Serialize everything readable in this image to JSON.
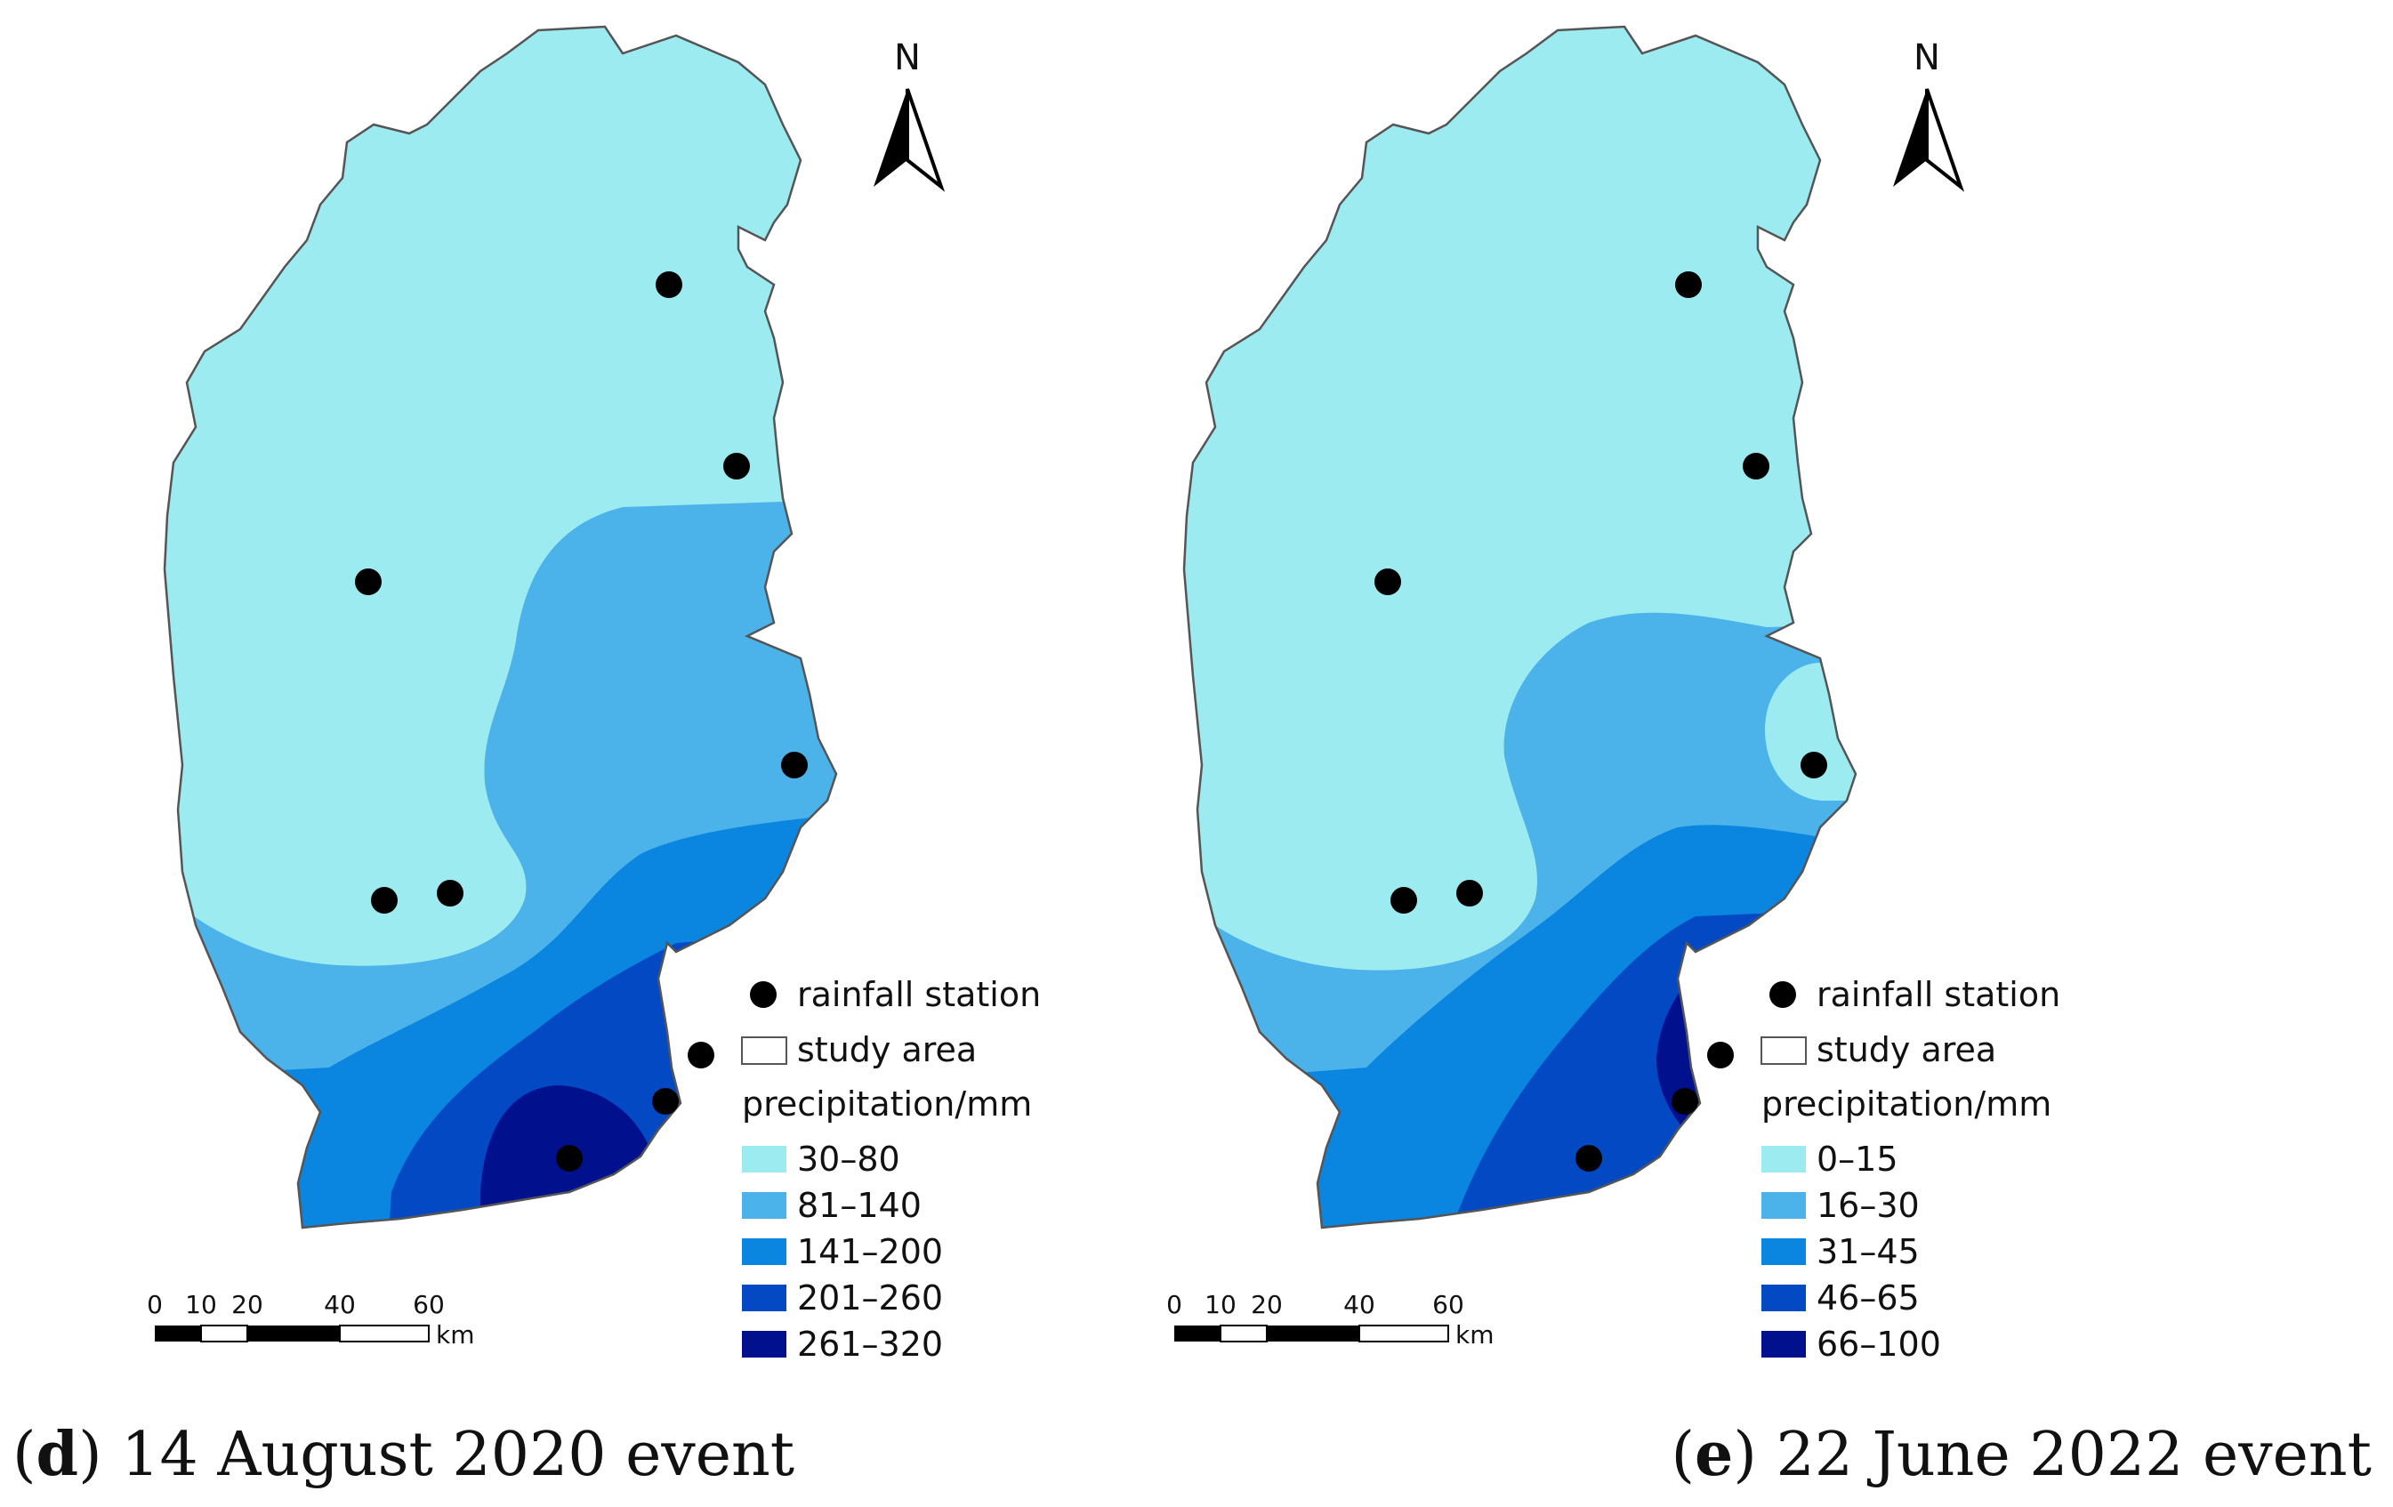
{
  "colors": {
    "class1": "#9BEBF0",
    "class2": "#4CB2EA",
    "class3": "#0A86E1",
    "class4": "#0349C3",
    "class5": "#01118E",
    "station": "#000000",
    "outline": "#555555"
  },
  "panels": [
    {
      "north_label": "N",
      "legend": {
        "station_label": "rainfall station",
        "study_area_label": "study area",
        "precip_title": "precipitation/mm",
        "classes": [
          "30–80",
          "81–140",
          "141–200",
          "201–260",
          "261–320"
        ]
      },
      "scale": {
        "ticks": [
          "0",
          "10",
          "20",
          "40",
          "60"
        ],
        "unit": "km"
      },
      "caption": {
        "letter": "d",
        "text": " 14 August 2020 event"
      }
    },
    {
      "north_label": "N",
      "legend": {
        "station_label": "rainfall station",
        "study_area_label": "study area",
        "precip_title": "precipitation/mm",
        "classes": [
          "0–15",
          "16–30",
          "31–45",
          "46–65",
          "66–100"
        ]
      },
      "scale": {
        "ticks": [
          "0",
          "10",
          "20",
          "40",
          "60"
        ],
        "unit": "km"
      },
      "caption": {
        "letter": "e",
        "text": " 22 June 2022 event"
      }
    }
  ]
}
